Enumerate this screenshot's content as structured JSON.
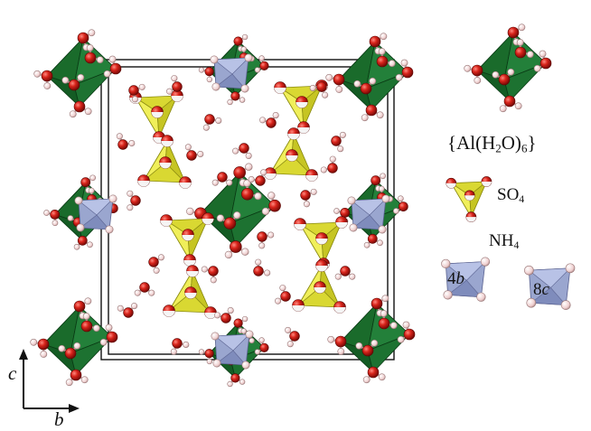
{
  "labels": {
    "formula": {
      "t1": "{Al(H",
      "s1": "2",
      "t2": "O)",
      "s2": "6",
      "t3": "}"
    },
    "sulfate": {
      "t1": "SO",
      "s1": "4"
    },
    "ammonium": {
      "t1": "NH",
      "s1": "4"
    },
    "site_4b": {
      "num": "4",
      "let": "b"
    },
    "site_8c": {
      "num": "8",
      "let": "c"
    },
    "axis_c": "c",
    "axis_b": "b"
  },
  "colors": {
    "octahedron": "#1f7a33",
    "octahedron_dark": "#0d4d1c",
    "sulfate": "#e3e23a",
    "ammonium": "#9aa6cf",
    "oxygen": "#d0201a",
    "hydrogen": "#f1d7d7",
    "cell_edge": "#111111"
  }
}
